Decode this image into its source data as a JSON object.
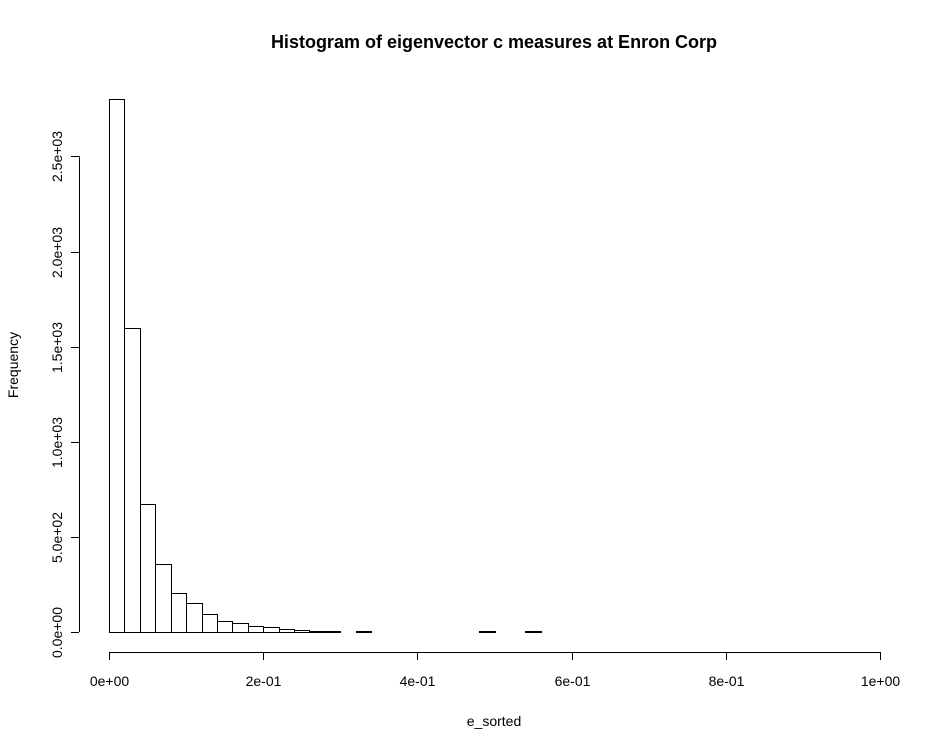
{
  "chart_data": {
    "type": "bar",
    "title": "Histogram of eigenvector c measures at Enron Corp",
    "xlabel": "e_sorted",
    "ylabel": "Frequency",
    "xlim": [
      0,
      1
    ],
    "ylim": [
      0,
      2800
    ],
    "bin_width": 0.02,
    "grid": false,
    "legend": "none",
    "x_ticks": [
      0,
      0.2,
      0.4,
      0.6,
      0.8,
      1.0
    ],
    "x_tick_labels": [
      "0e+00",
      "2e-01",
      "4e-01",
      "6e-01",
      "8e-01",
      "1e+00"
    ],
    "y_ticks": [
      0,
      500,
      1000,
      1500,
      2000,
      2500
    ],
    "y_tick_labels": [
      "0.0e+00",
      "5.0e+02",
      "1.0e+03",
      "1.5e+03",
      "2.0e+03",
      "2.5e+03"
    ],
    "bin_starts": [
      0.0,
      0.02,
      0.04,
      0.06,
      0.08,
      0.1,
      0.12,
      0.14,
      0.16,
      0.18,
      0.2,
      0.22,
      0.24,
      0.26,
      0.28,
      0.3,
      0.32,
      0.34,
      0.36,
      0.38,
      0.4,
      0.42,
      0.44,
      0.46,
      0.48,
      0.5,
      0.52,
      0.54,
      0.56,
      0.58,
      0.6,
      0.62,
      0.64,
      0.66,
      0.68,
      0.7,
      0.72,
      0.74,
      0.76,
      0.78,
      0.8,
      0.82,
      0.84,
      0.86,
      0.88,
      0.9,
      0.92,
      0.94,
      0.96,
      0.98
    ],
    "values": [
      2800,
      1600,
      675,
      355,
      205,
      155,
      95,
      60,
      45,
      32,
      25,
      15,
      10,
      6,
      5,
      2,
      3,
      1,
      1,
      1,
      1,
      1,
      1,
      1,
      3,
      1,
      1,
      3,
      1,
      0,
      0,
      0,
      0,
      0,
      0,
      0,
      0,
      0,
      0,
      0,
      0,
      0,
      0,
      0,
      0,
      0,
      0,
      0,
      0,
      1
    ]
  }
}
